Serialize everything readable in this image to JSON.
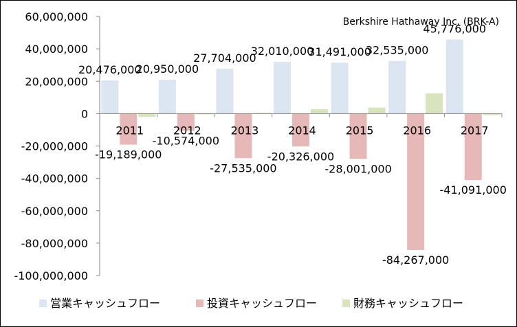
{
  "chart_data": {
    "type": "bar",
    "title": "Berkshire Hathaway Inc. (BRK-A)",
    "categories": [
      "2011",
      "2012",
      "2013",
      "2014",
      "2015",
      "2016",
      "2017"
    ],
    "series": [
      {
        "name": "営業キャッシュフロー",
        "color": "#dce6f2",
        "values": [
          20476000,
          20950000,
          27704000,
          32010000,
          31491000,
          32535000,
          45776000
        ]
      },
      {
        "name": "投資キャッシュフロー",
        "color": "#e6b9b8",
        "values": [
          -19189000,
          -10574000,
          -27535000,
          -20326000,
          -28001000,
          -84267000,
          -41091000
        ]
      },
      {
        "name": "財務キャッシュフロー",
        "color": "#d7e4bd",
        "values": [
          -2000000,
          -500000,
          500000,
          2800000,
          3700000,
          12500000,
          -1000000
        ]
      }
    ],
    "data_labels": [
      {
        "series": 0,
        "labels": [
          "20,476,000",
          "20,950,000",
          "27,704,000",
          "32,010,000",
          "31,491,000",
          "32,535,000",
          "45,776,000"
        ]
      },
      {
        "series": 1,
        "labels": [
          "-19,189,000",
          "-10,574,000",
          "-27,535,000",
          "-20,326,000",
          "-28,001,000",
          "-84,267,000",
          "-41,091,000"
        ]
      }
    ],
    "ylim": [
      -100000000,
      60000000
    ],
    "yticks": [
      60000000,
      40000000,
      20000000,
      0,
      -20000000,
      -40000000,
      -60000000,
      -80000000,
      -100000000
    ],
    "ytick_labels": [
      "60,000,000",
      "40,000,000",
      "20,000,000",
      "0",
      "-20,000,000",
      "-40,000,000",
      "-60,000,000",
      "-80,000,000",
      "-100,000,000"
    ],
    "grid": false,
    "legend_position": "bottom"
  }
}
